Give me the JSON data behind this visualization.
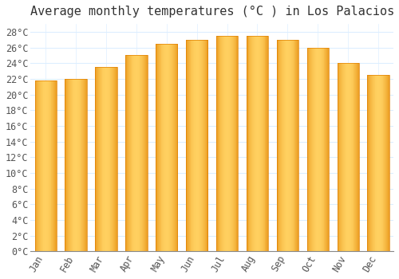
{
  "title": "Average monthly temperatures (°C ) in Los Palacios",
  "months": [
    "Jan",
    "Feb",
    "Mar",
    "Apr",
    "May",
    "Jun",
    "Jul",
    "Aug",
    "Sep",
    "Oct",
    "Nov",
    "Dec"
  ],
  "temperatures": [
    21.8,
    22.0,
    23.5,
    25.0,
    26.5,
    27.0,
    27.5,
    27.5,
    27.0,
    26.0,
    24.0,
    22.5
  ],
  "bar_color_main": "#FFA500",
  "bar_color_light": "#FFD060",
  "bar_color_dark": "#E08000",
  "background_color": "#FFFFFF",
  "grid_color": "#DDEEFF",
  "ylim": [
    0,
    29
  ],
  "ytick_step": 2,
  "title_fontsize": 11,
  "tick_fontsize": 8.5,
  "font_family": "monospace"
}
